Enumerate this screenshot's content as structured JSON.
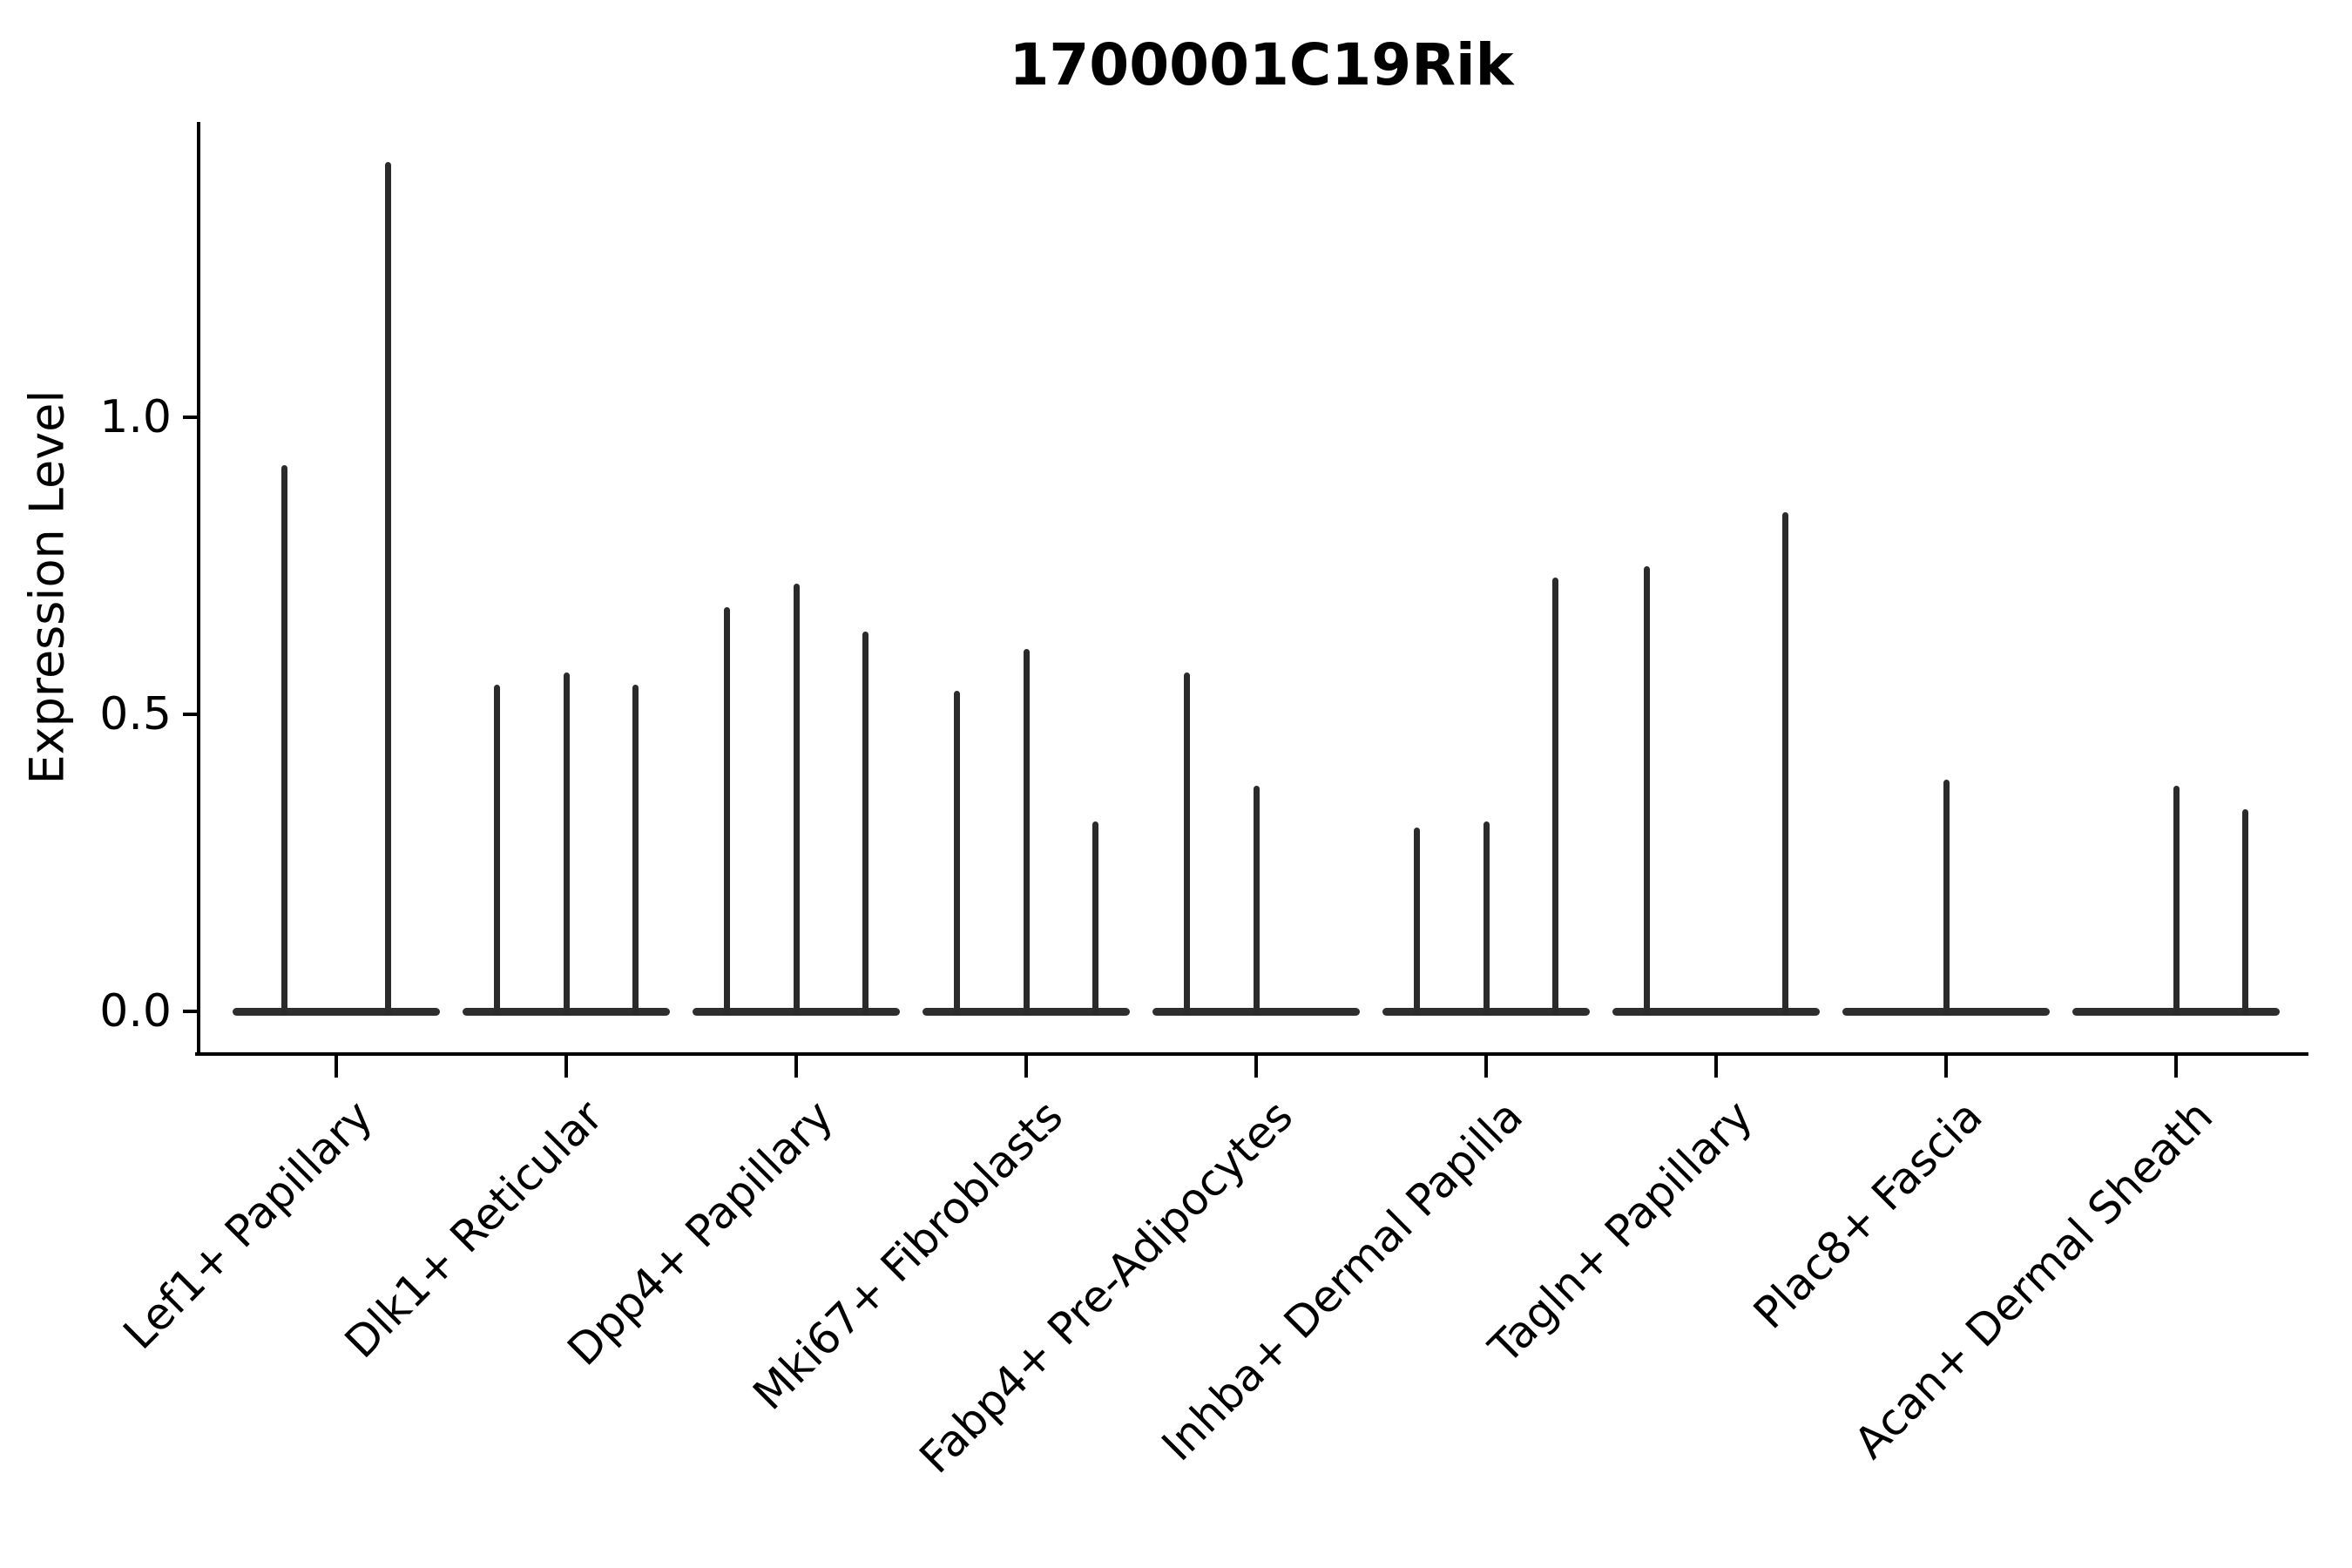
{
  "title": "1700001C19Rik",
  "ylabel": "Expression Level",
  "chart_data": {
    "type": "violin",
    "title": "1700001C19Rik",
    "xlabel": "",
    "ylabel": "Expression Level",
    "ylim": [
      -0.07,
      1.5
    ],
    "yticks": [
      0.0,
      0.5,
      1.0
    ],
    "ytick_labels": [
      "0.0",
      "0.5",
      "1.0"
    ],
    "grid": false,
    "legend": false,
    "spines": [
      "left",
      "bottom"
    ],
    "xtick_label_rotation_deg": 45,
    "description": "Violin plot of gene expression per cell population; each group shows thin violins collapsed to spikes with a flat body at zero expression.",
    "categories": [
      "Lef1+ Papillary",
      "Dlk1+ Reticular",
      "Dpp4+ Papillary",
      "Mki67+ Fibroblasts",
      "Fabp4+ Pre-Adipocytes",
      "Inhba+ Dermal Papilla",
      "Tagln+ Papillary",
      "Plac8+ Fascia",
      "Acan+ Dermal Sheath"
    ],
    "groups": [
      {
        "label": "Lef1+ Papillary",
        "violin_maxima": [
          0.92,
          1.43
        ]
      },
      {
        "label": "Dlk1+ Reticular",
        "violin_maxima": [
          0.55,
          0.57,
          0.55
        ]
      },
      {
        "label": "Dpp4+ Papillary",
        "violin_maxima": [
          0.68,
          0.72,
          0.64
        ]
      },
      {
        "label": "Mki67+ Fibroblasts",
        "violin_maxima": [
          0.54,
          0.61,
          0.32
        ]
      },
      {
        "label": "Fabp4+ Pre-Adipocytes",
        "violin_maxima": [
          0.57,
          0.38,
          0
        ]
      },
      {
        "label": "Inhba+ Dermal Papilla",
        "violin_maxima": [
          0.31,
          0.32,
          0.73
        ]
      },
      {
        "label": "Tagln+ Papillary",
        "violin_maxima": [
          0.75,
          0,
          0.84
        ]
      },
      {
        "label": "Plac8+ Fascia",
        "violin_maxima": [
          0.39
        ]
      },
      {
        "label": "Acan+ Dermal Sheath",
        "violin_maxima": [
          0,
          0.38,
          0.34
        ]
      }
    ],
    "colors": {
      "violin": "#2b2b2b",
      "violin_body": "#2e2e2e",
      "axis": "#000000",
      "text": "#000000",
      "background": "#ffffff"
    }
  }
}
